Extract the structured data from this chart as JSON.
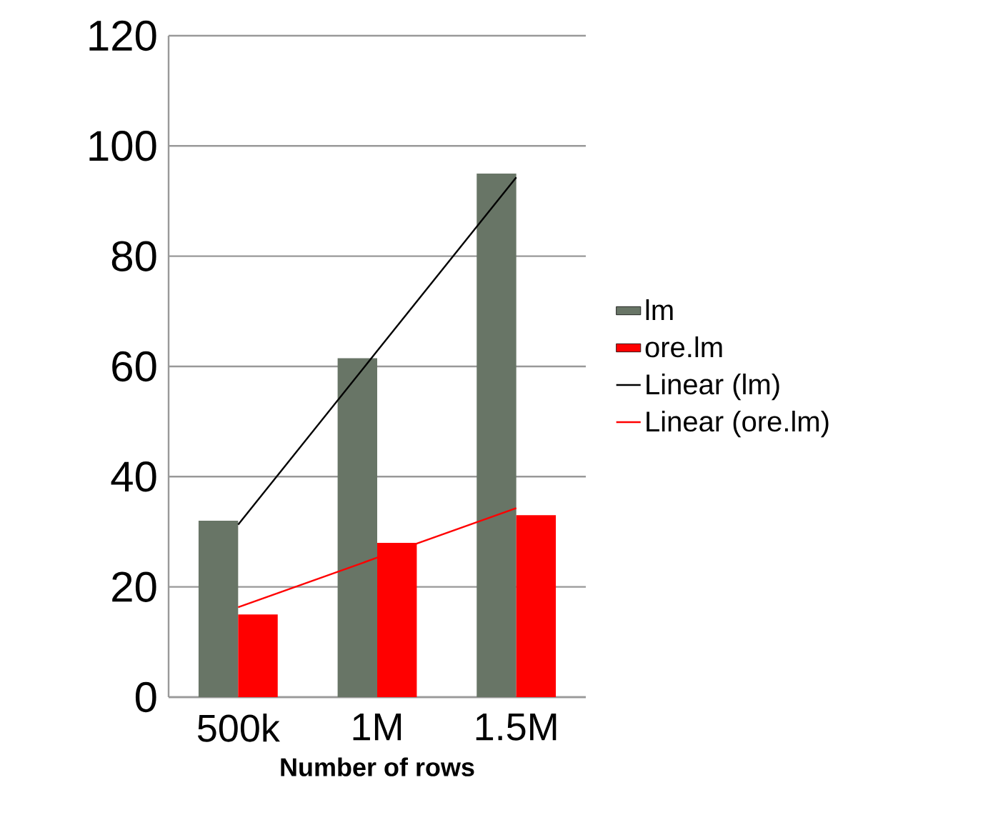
{
  "chart_data": {
    "type": "bar",
    "xlabel": "Number of rows",
    "categories": [
      "500k",
      "1M",
      "1.5M"
    ],
    "series": [
      {
        "name": "lm",
        "color": "#687566",
        "values": [
          32,
          61.5,
          95
        ]
      },
      {
        "name": "ore.lm",
        "color": "#ff0000",
        "values": [
          15,
          28,
          33
        ]
      },
      {
        "name": "Linear (lm)",
        "type": "line",
        "color": "#000000",
        "values": [
          31.3,
          62.8,
          94.3
        ]
      },
      {
        "name": "Linear (ore.lm)",
        "type": "line",
        "color": "#ff0000",
        "values": [
          16.3,
          25.3,
          34.3
        ]
      }
    ],
    "ylim": [
      0,
      120
    ],
    "yticks": [
      0,
      20,
      40,
      60,
      80,
      100,
      120
    ],
    "grid": "y",
    "legend": "right"
  }
}
